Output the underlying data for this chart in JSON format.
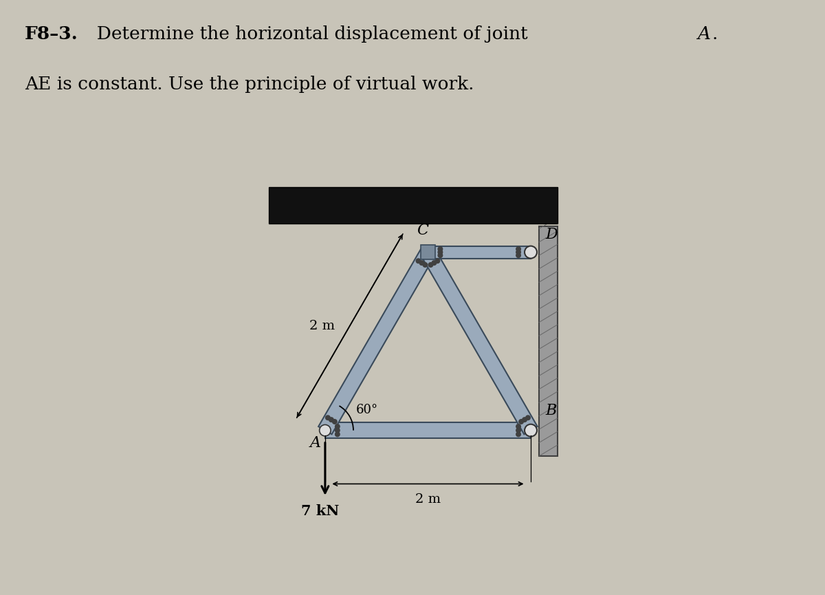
{
  "bg_color": "#c8c4b8",
  "bar_color_light": "#a8b8c8",
  "bar_color_mid": "#8898a8",
  "bar_edge_color": "#3a4a5a",
  "wall_color": "#888890",
  "wall_hatch_color": "#555560",
  "dark_beam_color": "#151515",
  "label_A": "A",
  "label_B": "B",
  "label_C": "C",
  "label_D": "D",
  "dim_AC": "2 m",
  "dim_AB": "2 m",
  "angle_label": "60°",
  "force_label": "7 kN",
  "title_bold": "F8–3.",
  "title_normal": "  Determine the horizontal displacement of joint ",
  "title_italic": "A",
  "title_dot": ".",
  "title_line2": "AE is constant. Use the principle of virtual work.",
  "title_fontsize": 19,
  "label_fontsize": 16,
  "dim_fontsize": 14,
  "force_fontsize": 15
}
